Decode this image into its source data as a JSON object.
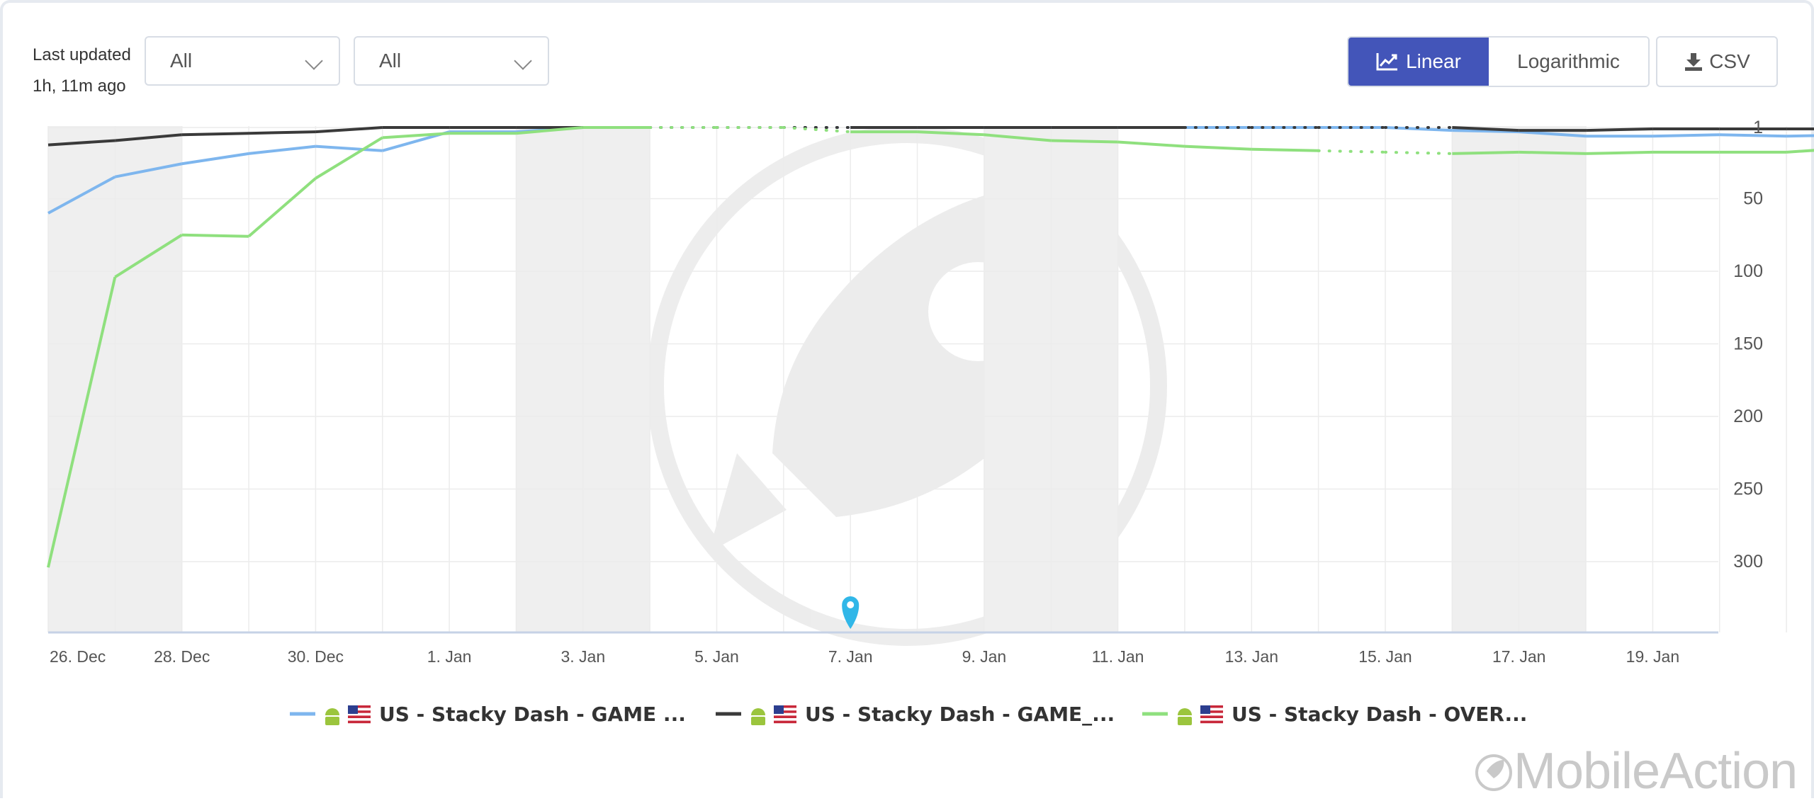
{
  "toolbar": {
    "last_updated_label": "Last updated",
    "last_updated_value": "1h, 11m ago",
    "dropdown_1": "All",
    "dropdown_2": "All",
    "scale_linear": "Linear",
    "scale_log": "Logarithmic",
    "csv_label": "CSV",
    "active_scale": "Linear"
  },
  "brand": {
    "name": "MobileAction"
  },
  "colors": {
    "accent": "#4355b9",
    "series_blue": "#7eb6ee",
    "series_dark": "#3a3a3a",
    "series_green": "#8fe07e",
    "marker": "#31b7e8"
  },
  "chart_data": {
    "type": "line",
    "x_tick_labels": [
      "26. Dec",
      "28. Dec",
      "30. Dec",
      "1. Jan",
      "3. Jan",
      "5. Jan",
      "7. Jan",
      "9. Jan",
      "11. Jan",
      "13. Jan",
      "15. Jan",
      "17. Jan",
      "19. Jan"
    ],
    "y_tick_labels": [
      "1",
      "50",
      "100",
      "150",
      "200",
      "250",
      "300"
    ],
    "y_reversed": true,
    "ylim": [
      1,
      350
    ],
    "grid": true,
    "legend_position": "bottom",
    "shaded_weekend_ranges": [
      [
        0,
        2
      ],
      [
        7,
        9
      ],
      [
        14,
        16
      ],
      [
        21,
        23
      ]
    ],
    "event_marker_day": 12,
    "series": [
      {
        "name": "US - Stacky Dash - GAME ...",
        "color": "#7eb6ee",
        "icons": [
          "android-icon",
          "us-flag-icon"
        ],
        "values": [
          60,
          35,
          26,
          19,
          14,
          17,
          4,
          4,
          1,
          1,
          1,
          1,
          1,
          1,
          1,
          1,
          1,
          1,
          1,
          1,
          1,
          3,
          4,
          7,
          7,
          6,
          7,
          6
        ]
      },
      {
        "name": "US - Stacky Dash - GAME_...",
        "color": "#3a3a3a",
        "icons": [
          "android-icon",
          "us-flag-icon"
        ],
        "values": [
          13,
          10,
          6,
          5,
          4,
          1,
          1,
          1,
          1,
          1,
          1,
          1,
          1,
          1,
          1,
          1,
          1,
          1,
          1,
          1,
          1,
          1,
          3,
          3,
          2,
          2,
          2,
          2
        ]
      },
      {
        "name": "US - Stacky Dash - OVER...",
        "color": "#8fe07e",
        "icons": [
          "android-icon",
          "us-flag-icon"
        ],
        "values": [
          304,
          104,
          75,
          76,
          36,
          8,
          5,
          5,
          1,
          1,
          1,
          1,
          4,
          4,
          6,
          10,
          11,
          14,
          16,
          17,
          18,
          19,
          18,
          19,
          18,
          18,
          18,
          15
        ]
      }
    ],
    "dotted_gaps": [
      {
        "series": 0,
        "ranges": [
          [
            9,
            12
          ]
        ]
      },
      {
        "series": 1,
        "ranges": [
          [
            9,
            12
          ],
          [
            17,
            21
          ]
        ]
      },
      {
        "series": 2,
        "ranges": [
          [
            9,
            12
          ],
          [
            19,
            21
          ]
        ]
      }
    ]
  }
}
